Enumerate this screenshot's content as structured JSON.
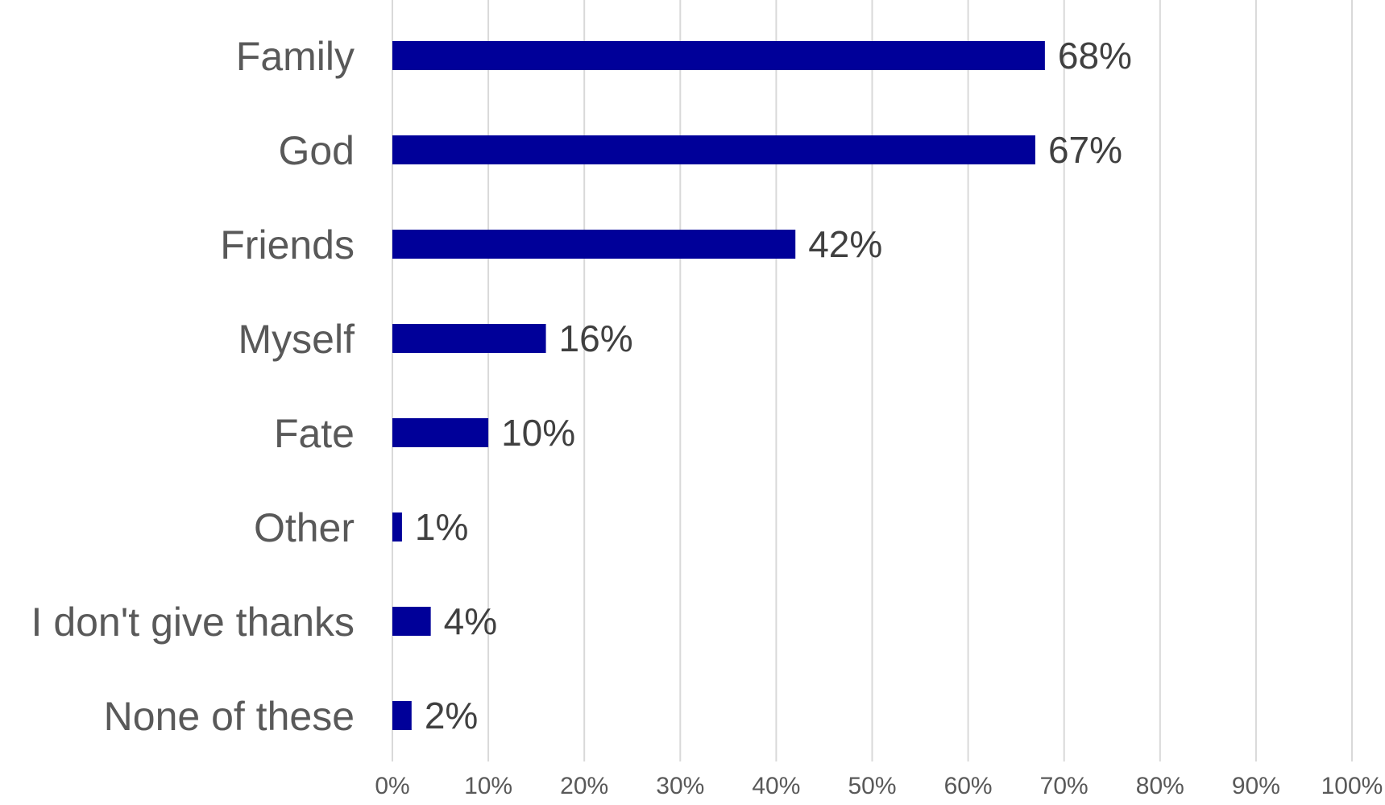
{
  "chart_data": {
    "type": "bar",
    "orientation": "horizontal",
    "title": "",
    "xlabel": "",
    "ylabel": "",
    "categories": [
      "Family",
      "God",
      "Friends",
      "Myself",
      "Fate",
      "Other",
      "I don't give thanks",
      "None of these"
    ],
    "values": [
      68,
      67,
      42,
      16,
      10,
      1,
      4,
      2
    ],
    "value_labels": [
      "68%",
      "67%",
      "42%",
      "16%",
      "10%",
      "1%",
      "4%",
      "2%"
    ],
    "xlim": [
      0,
      100
    ],
    "x_ticks": [
      0,
      10,
      20,
      30,
      40,
      50,
      60,
      70,
      80,
      90,
      100
    ],
    "x_tick_labels": [
      "0%",
      "10%",
      "20%",
      "30%",
      "40%",
      "50%",
      "60%",
      "70%",
      "80%",
      "90%",
      "100%"
    ],
    "grid": "vertical",
    "legend": "none",
    "bar_color": "#000099",
    "grid_color": "#d9d9d9"
  }
}
